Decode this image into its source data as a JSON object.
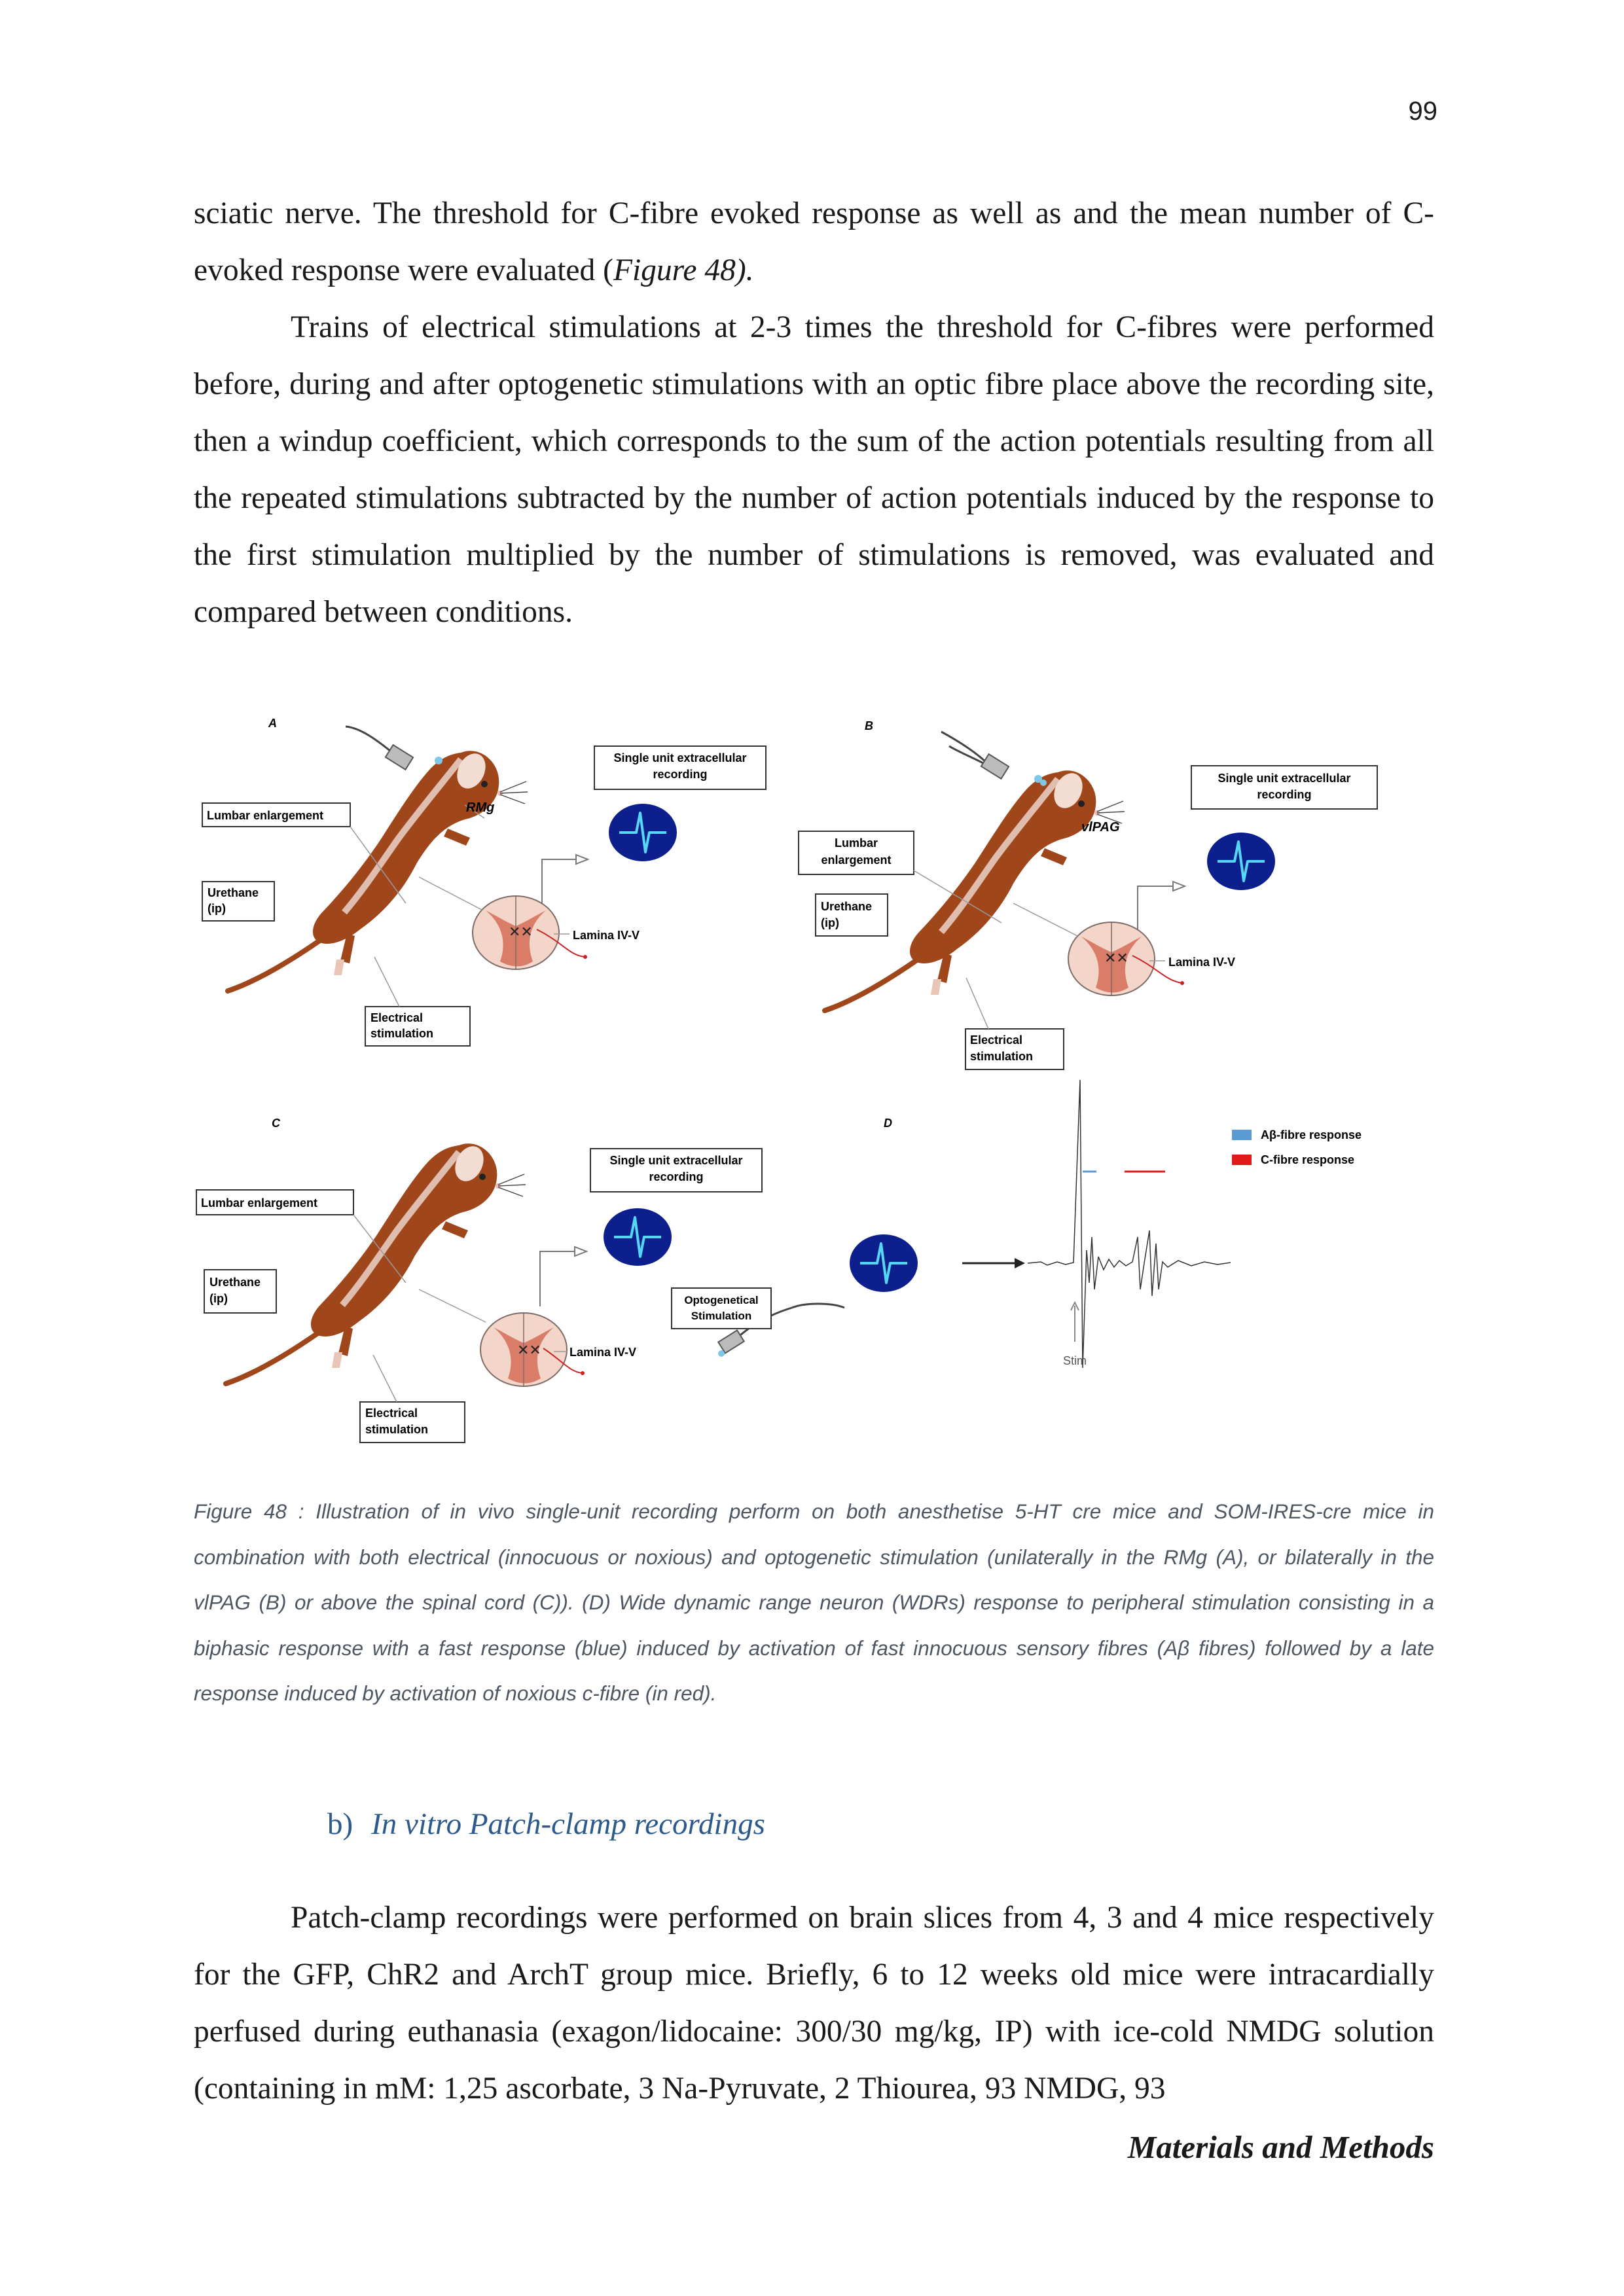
{
  "page_number": "99",
  "paragraph_1": {
    "text": "sciatic nerve. The threshold for C-fibre evoked response as well as and the mean number of C-evoked response were evaluated (",
    "ref": "Figure 48).",
    "tail": ""
  },
  "paragraph_2": "Trains of electrical stimulations at 2-3 times the threshold for C-fibres were performed before, during and after optogenetic stimulations with an optic fibre place above the recording site, then a windup coefficient, which corresponds to the sum of the action potentials resulting from all the repeated stimulations subtracted by the number of action potentials induced by the response to the first stimulation multiplied by the number of stimulations is removed, was evaluated and compared between conditions.",
  "figure": {
    "panel_A": {
      "letter": "A",
      "region": "RMg",
      "lumbar": "Lumbar enlargement",
      "urethane_1": "Urethane",
      "urethane_2": "(ip)",
      "electrical_1": "Electrical",
      "electrical_2": "stimulation",
      "recording_1": "Single unit extracellular",
      "recording_2": "recording",
      "lamina": "Lamina IV-V"
    },
    "panel_B": {
      "letter": "B",
      "region": "vlPAG",
      "lumbar_1": "Lumbar",
      "lumbar_2": "enlargement",
      "urethane_1": "Urethane",
      "urethane_2": "(ip)",
      "electrical_1": "Electrical",
      "electrical_2": "stimulation",
      "recording_1": "Single unit extracellular",
      "recording_2": "recording",
      "lamina": "Lamina IV-V"
    },
    "panel_C": {
      "letter": "C",
      "lumbar": "Lumbar enlargement",
      "urethane_1": "Urethane",
      "urethane_2": "(ip)",
      "electrical_1": "Electrical",
      "electrical_2": "stimulation",
      "recording_1": "Single unit extracellular",
      "recording_2": "recording",
      "opto_1": "Optogenetical",
      "opto_2": "Stimulation",
      "lamina": "Lamina IV-V"
    },
    "panel_D": {
      "letter": "D",
      "legend_ab": "Aβ-fibre response",
      "legend_c": "C-fibre response",
      "stim": "Stim"
    },
    "colors": {
      "mouse_body": "#a0461b",
      "oscilloscope": "#0c1f8c",
      "trace": "#55d6f5",
      "ab_response": "#5b9bd5",
      "c_response": "#e21a1a",
      "cord_grey": "#f2d2c6",
      "cord_red": "#d97d68"
    }
  },
  "caption": "Figure 48 : Illustration of in vivo single-unit recording perform on both anesthetise 5-HT cre mice and SOM-IRES-cre mice in combination with both electrical (innocuous or noxious) and optogenetic stimulation (unilaterally in the RMg (A), or bilaterally in the vlPAG (B) or above the spinal cord (C)). (D) Wide dynamic range neuron (WDRs) response to peripheral stimulation consisting in a biphasic response with a fast response (blue) induced by activation of fast innocuous sensory fibres (Aβ fibres) followed by a late response induced by activation of noxious c-fibre (in red).",
  "section": {
    "number": "b)",
    "title": "In vitro Patch-clamp recordings"
  },
  "paragraph_3": "Patch-clamp recordings were performed on brain slices from 4, 3 and 4 mice respectively for the GFP, ChR2 and ArchT group mice. Briefly, 6 to 12 weeks old mice were intracardially perfused during euthanasia (exagon/lidocaine: 300/30 mg/kg, IP) with ice-cold NMDG solution (containing in mM: 1,25 ascorbate, 3 Na-Pyruvate, 2 Thiourea, 93 NMDG, 93",
  "footer": "Materials and Methods"
}
